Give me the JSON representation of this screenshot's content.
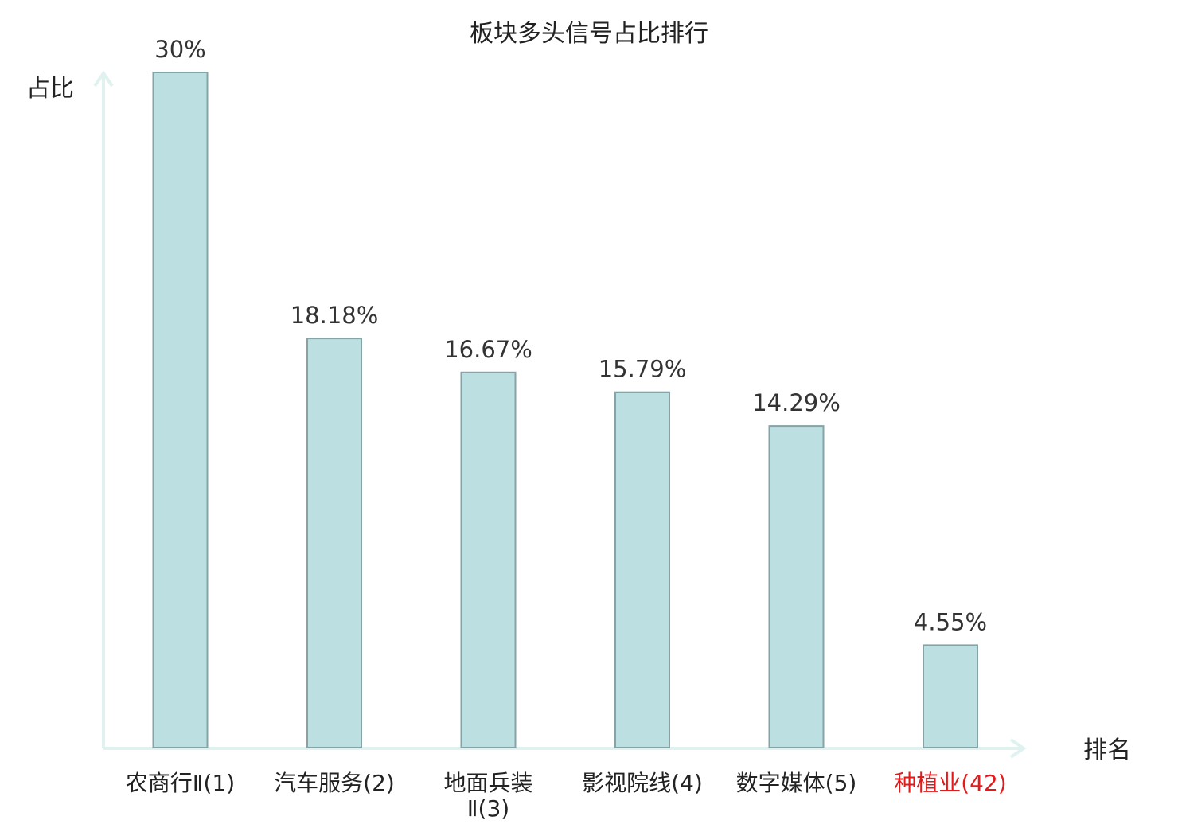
{
  "chart_data": {
    "type": "bar",
    "title": "板块多头信号占比排行",
    "xlabel": "排名",
    "ylabel": "占比",
    "categories": [
      {
        "name_lines": [
          "农商行Ⅱ"
        ],
        "rank": "(1)",
        "highlight": false
      },
      {
        "name_lines": [
          "汽车服务"
        ],
        "rank": "(2)",
        "highlight": false
      },
      {
        "name_lines": [
          "地面兵装",
          "Ⅱ"
        ],
        "rank": "(3)",
        "highlight": false
      },
      {
        "name_lines": [
          "影视院线"
        ],
        "rank": "(4)",
        "highlight": false
      },
      {
        "name_lines": [
          "数字媒体"
        ],
        "rank": "(5)",
        "highlight": false
      },
      {
        "name_lines": [
          "种植业"
        ],
        "rank": "(42)",
        "highlight": true
      }
    ],
    "values": [
      30,
      18.18,
      16.67,
      15.79,
      14.29,
      4.55
    ],
    "value_labels": [
      "30%",
      "18.18%",
      "16.67%",
      "15.79%",
      "14.29%",
      "4.55%"
    ],
    "ylim": [
      0,
      30
    ],
    "grid": false,
    "legend": "none",
    "colors": {
      "bar_fill": "#bce0e2",
      "bar_stroke": "#86a3a5",
      "axis": "#e0f2ef",
      "highlight_text": "#e31a1c",
      "text": "#222222"
    }
  }
}
